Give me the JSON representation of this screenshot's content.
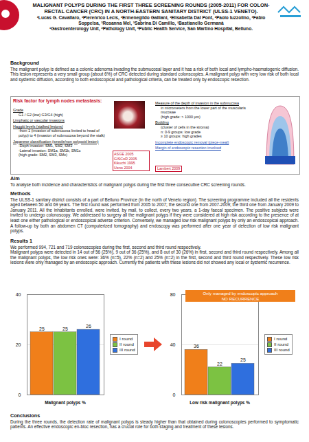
{
  "header": {
    "title": "MALIGNANT POLYPS DURING THE FIRST THREE SCREENING ROUNDS (2005-2011) FOR COLON-RECTAL CANCER (CRC) IN A NORTH-EASTERN SANITARY DISTRICT (ULSS-1 VENETO).",
    "authors": "¹Lucas G. Cavallaro, ¹Pierenrico Lecis, ¹Ermenegildo Galliani, ¹Elisabetta Dal Pont, ²Paolo Iuzzolino, ³Fabio Soppelsa, ³Rosanna Mel, ³Sabrina Di Camillo, ¹Bastianello Germanà",
    "affiliations": "¹Gastroenterology Unit, ²Pathology Unit, ³Public Health Service, San Martino Hospital, Belluno."
  },
  "background": {
    "heading": "Background",
    "text": "The malignant polyp is defined as a colonic adenoma invading the submucosal layer and it has a risk of both local and lympho-haematogenic diffusion. This lesion represents a very small group (about 6%) of CRC detected during standard colonscopies. A malignant polyp with very low risk of both local and systemic diffusion, according to both endoscopical and pathological criteria, can be treated only by endoscopic resection."
  },
  "risk_box": {
    "title": "Risk factor for lymph nodes metastasis:",
    "left": [
      {
        "text": "Grade",
        "style": "underline"
      },
      {
        "text": "G1 / G2 (low) G3/G4 (high)",
        "style": "indent"
      },
      {
        "text": "Limphatic or vascular invasions",
        "style": "underline"
      },
      {
        "text": "Haggitt levels (stalked lesions)",
        "style": "underline"
      },
      {
        "text": "-from 1 (invasion of submucosa limited to head of polyp) to 4 (invasion of submucosa beyond the stalk)",
        "style": "indent"
      },
      {
        "text": "Japanese classification (sessile/non polypoid lesion)",
        "style": "underline"
      },
      {
        "text": "-Deph invasion: SM1, SM2, SM3",
        "style": "indent"
      },
      {
        "text": "-Lateral invasion: SM1a, SM1b, SM1c",
        "style": "indent"
      },
      {
        "text": "(high grade: SM2, SM3, SMc)",
        "style": "indent"
      }
    ],
    "references_left": [
      "ASGE 2005",
      "GISCoR 2005",
      "Kikuchi 1995",
      "Ueno 2004"
    ],
    "right": [
      {
        "text": "Measure of the depth of invasion in the submucosa",
        "style": "underline"
      },
      {
        "text": "in micrometers from the lower part of the muscularis mucosae",
        "style": "indent"
      },
      {
        "text": "(high grade: > 1000 µm)",
        "style": "indent"
      },
      {
        "text": "Budding",
        "style": "underline"
      },
      {
        "text": "(cluster of cells in the stroma)",
        "style": "indent"
      },
      {
        "text": "n: 0-9 groups: low grade",
        "style": "indent"
      },
      {
        "text": "≥ 10 groups: high grades",
        "style": "indent"
      },
      {
        "text": "Incomplete endoscopic removal (piece-meal)",
        "style": "link"
      },
      {
        "text": "Margin of endoscopic resection involved",
        "style": "link"
      }
    ],
    "references_right": [
      "Lambert 2009"
    ]
  },
  "aim": {
    "heading": "Aim",
    "text": "To analyse both incidence and characteristics of malignant polyps during the first three consecutive CRC screening rounds."
  },
  "methods": {
    "heading": "Methods",
    "text": "The ULSS-1 sanitary district consists of a part of Belluno Province (in the north of Veneto region). The screening programme included all the residents aged between 50 and 69 years. The first round was performed from 2005 to 2007; the second one from 2007-2009; the third one from January 2009 to January 2011. All the inhabitants enrolled, were invited, by mail, to collect, every two years, a 1-day faecal specimen. The positive subjects were invited to undergo colonoscopy. We addressed to surgery all the malignant polyps if they were considered at high risk according to the presence of at least one either pathological or endoscopical adverse criterion. Conversely, we managed low risk malignant polyps by only an endoscopical approach. A follow-up by both an abdomen CT (computerized tomography) and endoscopy was performed after one year of detection of low risk malignant polyps."
  },
  "results": {
    "heading": "Results 1",
    "paragraphs": [
      "We performed 994, 721 and 719 colonoscopies during the first, second and third round respectively.",
      "Malignant polyps were detected in 14 out of 56 (25%), 9 out of 36 (25%), and 8 out of 30 (26%) in first, second and third round respectively. Among all the malignant polyps, the low risk ones were: 36% (n=5), 22% (n=2) and 25% (n=2) in the first, second and third round respectively. These low risk lesions were only managed by an endoscopic approach. Currently the patients with these lesions did not showed any local or systemic recurrence."
    ]
  },
  "chart_data": [
    {
      "type": "bar",
      "xlabel": "Malignant polyps %",
      "categories": [
        "I round",
        "II round",
        "III round"
      ],
      "values": [
        25,
        25,
        26
      ],
      "colors": [
        "#f07f1a",
        "#7cc242",
        "#2f6fde"
      ],
      "ylim": [
        0,
        40
      ],
      "yticks": [
        0,
        20,
        40
      ],
      "grid": true,
      "data_labels": true,
      "legend": "right",
      "tick_labels": "y"
    },
    {
      "type": "bar",
      "xlabel": "Low risk malignant polyps %",
      "categories": [
        "I round",
        "II round",
        "III round"
      ],
      "values": [
        36,
        22,
        25
      ],
      "colors": [
        "#f07f1a",
        "#7cc242",
        "#2f6fde"
      ],
      "ylim": [
        0,
        80
      ],
      "yticks": [
        0,
        40,
        80
      ],
      "grid": true,
      "data_labels": true,
      "legend": "right",
      "tick_labels": "y",
      "annotation": [
        "Only managed by endoscopic approach",
        "NO RECURRENCE"
      ]
    }
  ],
  "conclusions": {
    "heading": "Conclusions",
    "text": "During the three rounds, the detection rate of malignant polyps is steady higher than that obtained during colonoscopies performed to symptomatic patients. An effective endoscopic en-bloc resection, has a crucial role for both staging and treatment of these lesions."
  }
}
